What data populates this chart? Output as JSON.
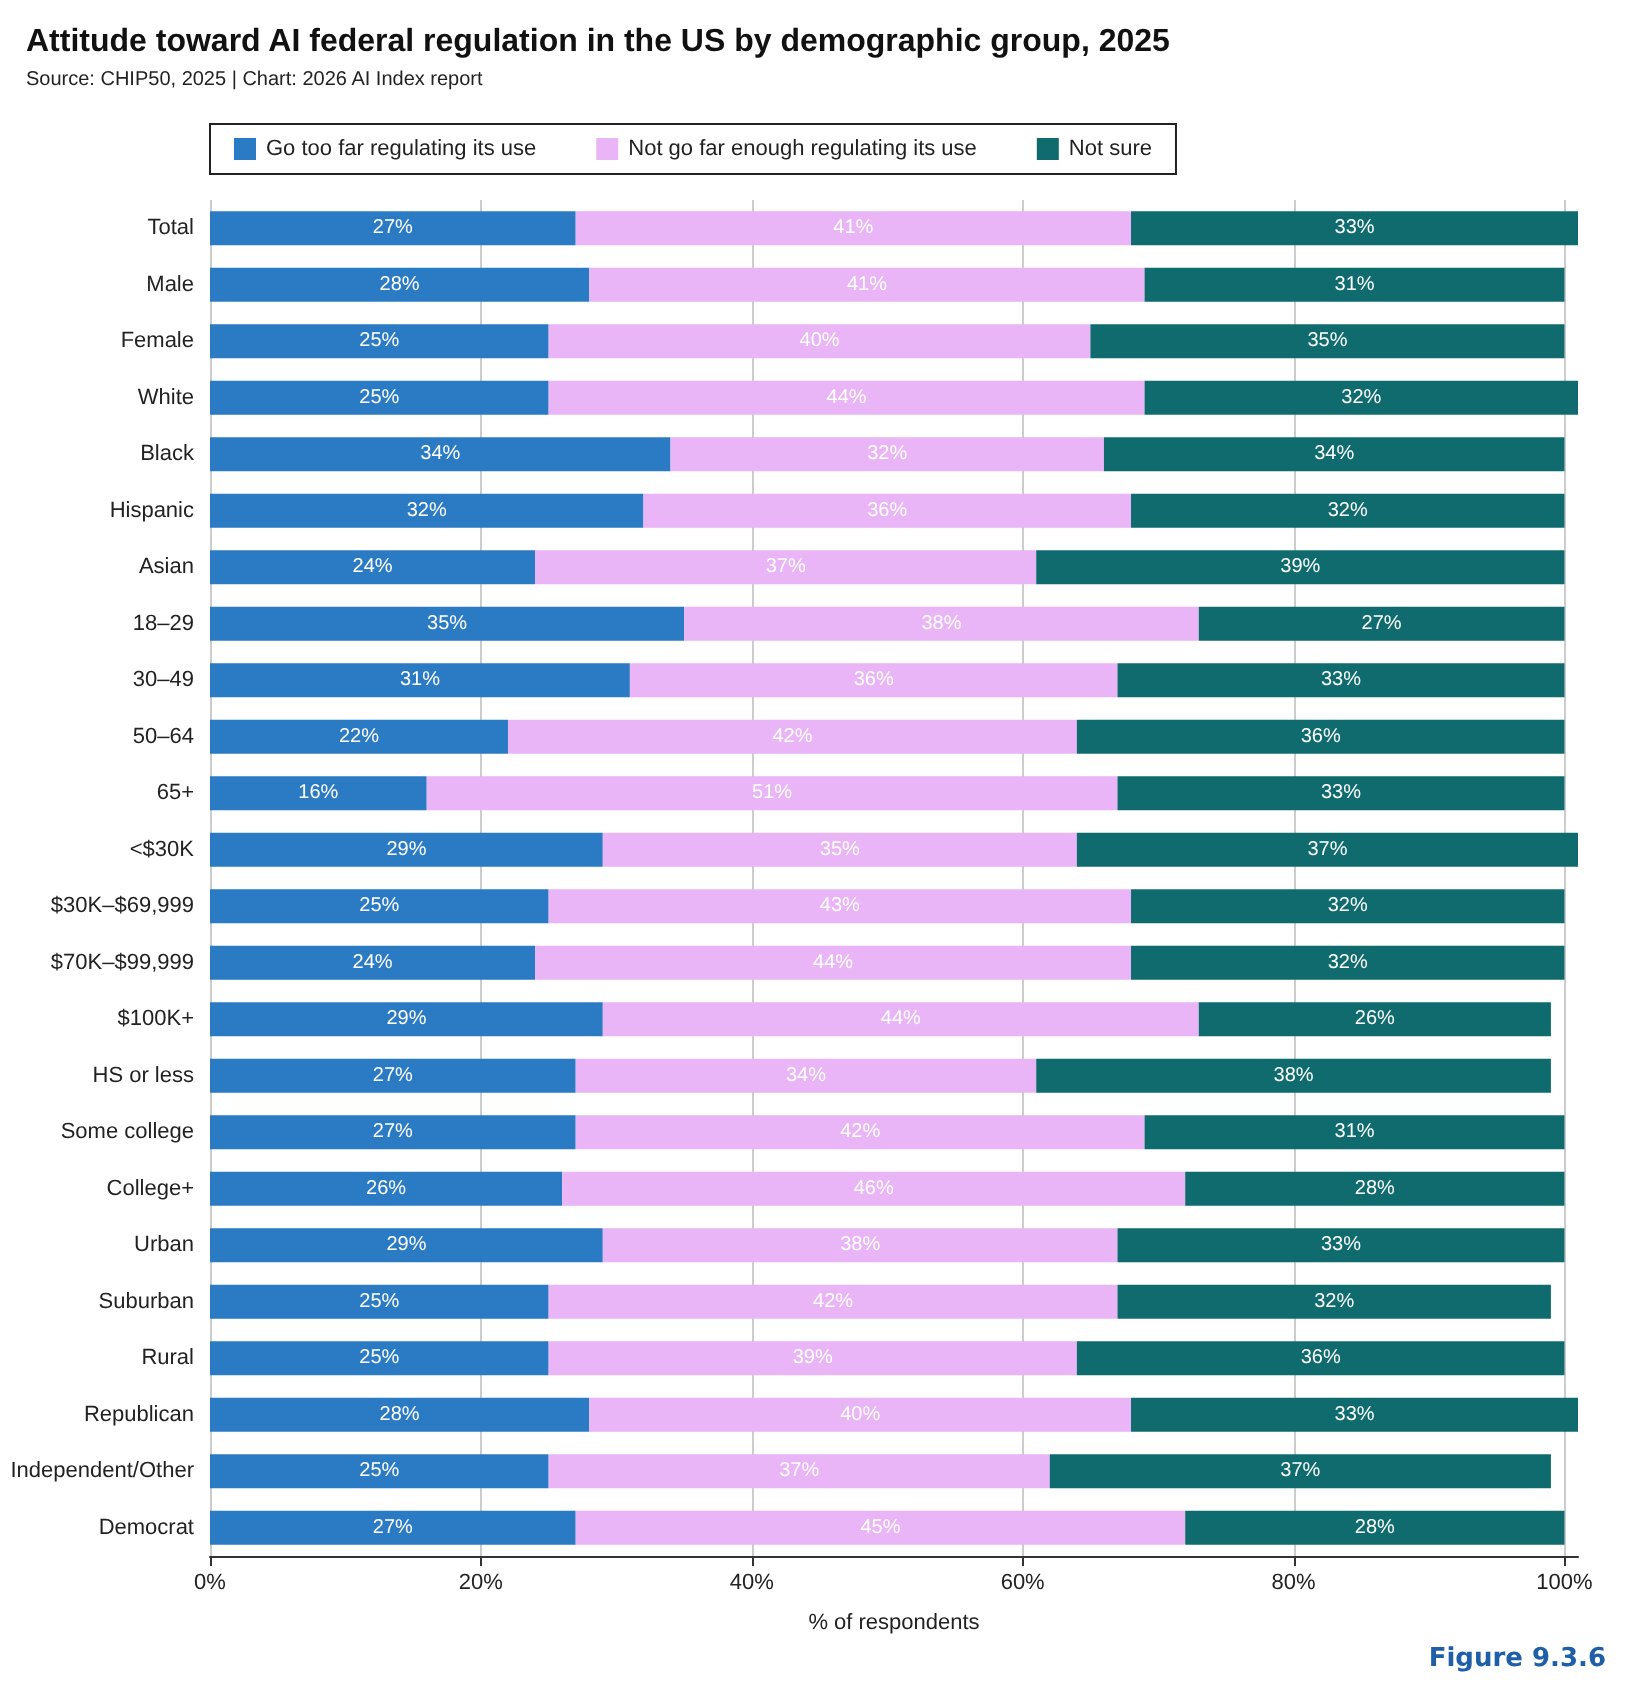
{
  "chart_data": {
    "type": "bar",
    "orientation": "horizontal",
    "stacked": true,
    "title": "Attitude toward AI federal regulation in the US by demographic group, 2025",
    "subtitle": "Source: CHIP50, 2025 | Chart: 2026 AI Index report",
    "xlabel": "% of respondents",
    "annotations": [
      "Figure 9.3.6"
    ],
    "categories": [
      "Total",
      "Male",
      "Female",
      "White",
      "Black",
      "Hispanic",
      "Asian",
      "18–29",
      "30–49",
      "50–64",
      "65+",
      "<$30K",
      "$30K–$69,999",
      "$70K–$99,999",
      "$100K+",
      "HS or less",
      "Some college",
      "College+",
      "Urban",
      "Suburban",
      "Rural",
      "Republican",
      "Independent/Other",
      "Democrat"
    ],
    "series": [
      {
        "name": "Go too far regulating its use",
        "color": "#2b7bc4",
        "values": [
          27,
          28,
          25,
          25,
          34,
          32,
          24,
          35,
          31,
          22,
          16,
          29,
          25,
          24,
          29,
          27,
          27,
          26,
          29,
          25,
          25,
          28,
          25,
          27
        ],
        "value_labels": [
          "27%",
          "28%",
          "25%",
          "25%",
          "34%",
          "32%",
          "24%",
          "35%",
          "31%",
          "22%",
          "16%",
          "29%",
          "25%",
          "24%",
          "29%",
          "27%",
          "27%",
          "26%",
          "29%",
          "25%",
          "25%",
          "28%",
          "25%",
          "27%"
        ]
      },
      {
        "name": "Not go far enough regulating its use",
        "color": "#e9b5f7",
        "values": [
          41,
          41,
          40,
          44,
          32,
          36,
          37,
          38,
          36,
          42,
          51,
          35,
          43,
          44,
          44,
          34,
          42,
          46,
          38,
          42,
          39,
          40,
          37,
          45
        ],
        "value_labels": [
          "41%",
          "41%",
          "40%",
          "44%",
          "32%",
          "36%",
          "37%",
          "38%",
          "36%",
          "42%",
          "51%",
          "35%",
          "43%",
          "44%",
          "44%",
          "34%",
          "42%",
          "46%",
          "38%",
          "42%",
          "39%",
          "40%",
          "37%",
          "45%"
        ]
      },
      {
        "name": "Not sure",
        "color": "#0f6b6e",
        "values": [
          33,
          31,
          35,
          32,
          34,
          32,
          39,
          27,
          33,
          36,
          33,
          37,
          32,
          32,
          26,
          38,
          31,
          28,
          33,
          32,
          36,
          33,
          37,
          28
        ],
        "value_labels": [
          "33%",
          "31%",
          "35%",
          "32%",
          "34%",
          "32%",
          "39%",
          "27%",
          "33%",
          "36%",
          "33%",
          "37%",
          "32%",
          "32%",
          "26%",
          "38%",
          "31%",
          "28%",
          "33%",
          "32%",
          "36%",
          "33%",
          "37%",
          "28%"
        ]
      }
    ],
    "xlim": [
      0,
      101
    ],
    "xticks": [
      {
        "value": 0,
        "label": "0%"
      },
      {
        "value": 20,
        "label": "20%"
      },
      {
        "value": 40,
        "label": "40%"
      },
      {
        "value": 60,
        "label": "60%"
      },
      {
        "value": 80,
        "label": "80%"
      },
      {
        "value": 100,
        "label": "100%"
      }
    ],
    "grid": "x",
    "legend": "top"
  }
}
